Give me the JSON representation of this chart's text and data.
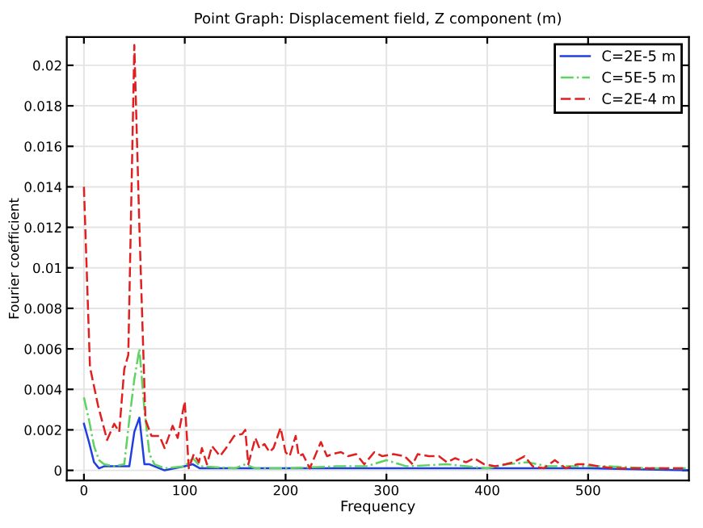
{
  "chart_data": {
    "type": "line",
    "title": "Point Graph: Displacement field, Z component (m)",
    "xlabel": "Frequency",
    "ylabel": "Fourier coefficient",
    "series": [
      {
        "name": "C=2E-5 m",
        "color": "#1f3fe0",
        "line_style": "solid",
        "x": [
          0,
          5,
          10,
          15,
          20,
          30,
          40,
          45,
          50,
          55,
          60,
          65,
          70,
          80,
          90,
          100,
          108,
          115,
          130,
          150,
          200,
          300,
          400,
          500,
          598
        ],
        "values": [
          0.0023,
          0.0014,
          0.0004,
          0.0001,
          0.0002,
          0.0002,
          0.0002,
          0.0002,
          0.0019,
          0.0026,
          0.0003,
          0.0003,
          0.0002,
          0.0,
          0.0001,
          0.0002,
          0.0003,
          0.0001,
          0.0001,
          0.0001,
          0.0001,
          0.0001,
          0.0001,
          0.0001,
          0.0
        ]
      },
      {
        "name": "C=5E-5 m",
        "color": "#5fd35f",
        "line_style": "dashdot",
        "x": [
          0,
          5,
          10,
          15,
          20,
          30,
          40,
          45,
          50,
          55,
          60,
          65,
          70,
          80,
          100,
          108,
          115,
          150,
          160,
          170,
          200,
          250,
          280,
          300,
          320,
          360,
          400,
          420,
          440,
          460,
          500,
          520,
          560,
          598
        ],
        "values": [
          0.0036,
          0.0025,
          0.0012,
          0.0005,
          0.0003,
          0.0002,
          0.0003,
          0.0025,
          0.0045,
          0.006,
          0.003,
          0.0008,
          0.0003,
          0.0001,
          0.0002,
          0.0006,
          0.0002,
          0.0001,
          0.0003,
          0.0001,
          0.0001,
          0.0002,
          0.0002,
          0.0005,
          0.0002,
          0.0003,
          0.0001,
          0.0003,
          0.0004,
          0.0002,
          0.0002,
          0.0002,
          0.0001,
          0.0001
        ]
      },
      {
        "name": "C=2E-4 m",
        "color": "#e02020",
        "line_style": "dashed",
        "x": [
          0,
          6,
          14,
          23,
          30,
          35,
          40,
          44,
          50,
          55,
          61,
          67,
          75,
          80,
          88,
          93,
          100,
          104,
          109,
          114,
          117,
          122,
          127,
          135,
          141,
          149,
          157,
          160,
          163,
          170,
          174,
          179,
          184,
          188,
          195,
          200,
          204,
          210,
          213,
          217,
          224,
          235,
          241,
          246,
          255,
          262,
          270,
          278,
          288,
          296,
          307,
          318,
          326,
          331,
          342,
          352,
          360,
          368,
          379,
          387,
          397,
          408,
          418,
          426,
          437,
          445,
          456,
          467,
          478,
          489,
          499,
          510,
          526,
          537,
          548,
          558,
          580,
          598
        ],
        "values": [
          0.014,
          0.0051,
          0.0032,
          0.0015,
          0.0023,
          0.0019,
          0.005,
          0.0057,
          0.021,
          0.012,
          0.0025,
          0.0017,
          0.0017,
          0.0011,
          0.0022,
          0.0016,
          0.0034,
          0.0001,
          0.0008,
          0.0004,
          0.0011,
          0.0003,
          0.0012,
          0.0007,
          0.0011,
          0.0017,
          0.0018,
          0.002,
          0.0003,
          0.0016,
          0.0011,
          0.0013,
          0.0009,
          0.0011,
          0.0021,
          0.0009,
          0.0007,
          0.0017,
          0.0007,
          0.0008,
          0.0001,
          0.0014,
          0.0007,
          0.0008,
          0.0009,
          0.0007,
          0.0008,
          0.0003,
          0.0009,
          0.0007,
          0.0008,
          0.0007,
          0.0003,
          0.0008,
          0.0007,
          0.0007,
          0.0004,
          0.0006,
          0.0004,
          0.0006,
          0.0003,
          0.0002,
          0.0003,
          0.0004,
          0.0007,
          0.0002,
          0.0001,
          0.0005,
          0.0001,
          0.0003,
          0.0003,
          0.0002,
          0.0001,
          0.0001,
          0.0001,
          0.0001,
          0.0001,
          0.0001
        ]
      }
    ],
    "xlim": [
      -17,
      600
    ],
    "xticks": [
      0,
      100,
      200,
      300,
      400,
      500
    ],
    "ylim": [
      -0.0005,
      0.0214
    ],
    "yticks": [
      0,
      0.002,
      0.004,
      0.006,
      0.008,
      0.01,
      0.012,
      0.014,
      0.016,
      0.018,
      0.02
    ],
    "grid": true,
    "legend": "top right",
    "marker": "none"
  }
}
